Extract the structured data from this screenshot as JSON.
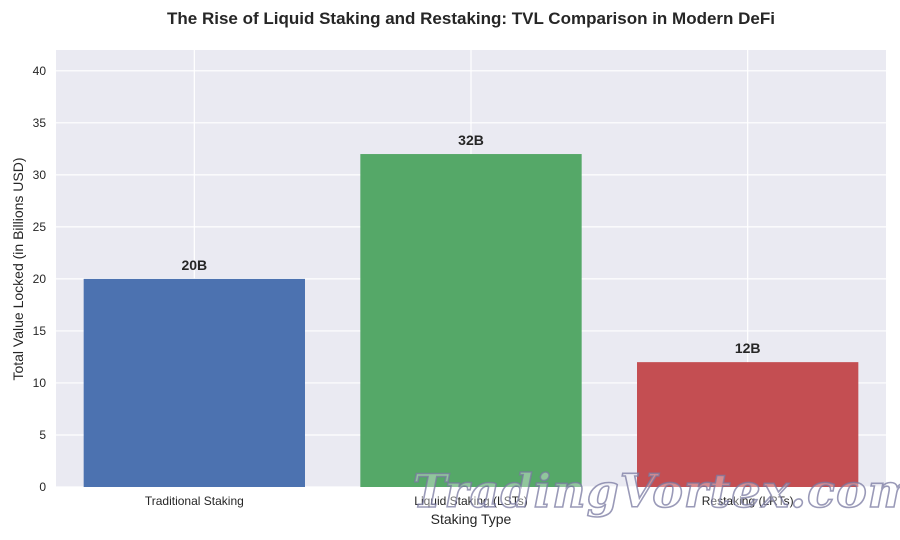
{
  "chart_data": {
    "type": "bar",
    "title": "The Rise of Liquid Staking and Restaking: TVL Comparison in Modern DeFi",
    "xlabel": "Staking Type",
    "ylabel": "Total Value Locked (in Billions USD)",
    "categories": [
      "Traditional Staking",
      "Liquid Staking (LSTs)",
      "Restaking (LRTs)"
    ],
    "values": [
      20,
      32,
      12
    ],
    "value_labels": [
      "20B",
      "32B",
      "12B"
    ],
    "colors": [
      "#4c72b0",
      "#55a868",
      "#c44e52"
    ],
    "ylim": [
      0,
      42
    ],
    "yticks": [
      0,
      5,
      10,
      15,
      20,
      25,
      30,
      35,
      40
    ],
    "ytick_labels": [
      "0",
      "5",
      "10",
      "15",
      "20",
      "25",
      "30",
      "35",
      "40"
    ],
    "grid": true,
    "background": "#eaeaf2"
  },
  "watermark": {
    "text": "TradingVortex.com"
  }
}
